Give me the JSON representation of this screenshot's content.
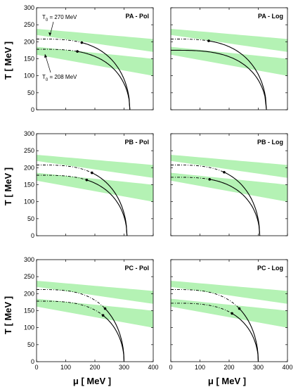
{
  "chart_data": {
    "type": "line",
    "ylabel": "T  [ MeV ]",
    "xlabel": "μ  [ MeV ]",
    "xlim": [
      0,
      400
    ],
    "ylim": [
      0,
      300
    ],
    "xticks": [
      0,
      100,
      200,
      300,
      400
    ],
    "yticks": [
      0,
      50,
      100,
      150,
      200,
      250,
      300
    ],
    "band_color": "#b4f2b4",
    "line_color": "#000000",
    "annotations": [
      {
        "panel": 0,
        "text": "T",
        "sub": "0",
        "rest": " = 270 MeV"
      },
      {
        "panel": 0,
        "text": "T",
        "sub": "0",
        "rest": " = 208 MeV"
      }
    ],
    "panels": [
      {
        "label": "PA - Pol",
        "Tc": [
          208,
          178
        ],
        "mu_end": [
          320,
          320
        ],
        "cep_mu": [
          155,
          140
        ],
        "dashdot": [
          true,
          true
        ]
      },
      {
        "label": "PA - Log",
        "Tc": [
          208,
          175
        ],
        "mu_end": [
          328,
          328
        ],
        "cep_mu": [
          130,
          0
        ],
        "dashdot": [
          true,
          false
        ]
      },
      {
        "label": "PB - Pol",
        "Tc": [
          208,
          178
        ],
        "mu_end": [
          310,
          310
        ],
        "cep_mu": [
          190,
          172
        ],
        "dashdot": [
          true,
          true
        ]
      },
      {
        "label": "PB - Log",
        "Tc": [
          208,
          172
        ],
        "mu_end": [
          305,
          305
        ],
        "cep_mu": [
          183,
          133
        ],
        "dashdot": [
          true,
          true
        ]
      },
      {
        "label": "PC - Pol",
        "Tc": [
          212,
          178
        ],
        "mu_end": [
          300,
          300
        ],
        "cep_mu": [
          235,
          228
        ],
        "dashdot": [
          true,
          true
        ]
      },
      {
        "label": "PC - Log",
        "Tc": [
          212,
          172
        ],
        "mu_end": [
          300,
          300
        ],
        "cep_mu": [
          235,
          210
        ],
        "dashdot": [
          true,
          true
        ]
      }
    ],
    "bands": [
      {
        "from": [
          220,
          238
        ],
        "to": [
          170,
          208
        ]
      },
      {
        "from": [
          162,
          185
        ],
        "to": [
          100,
          150
        ]
      }
    ]
  }
}
